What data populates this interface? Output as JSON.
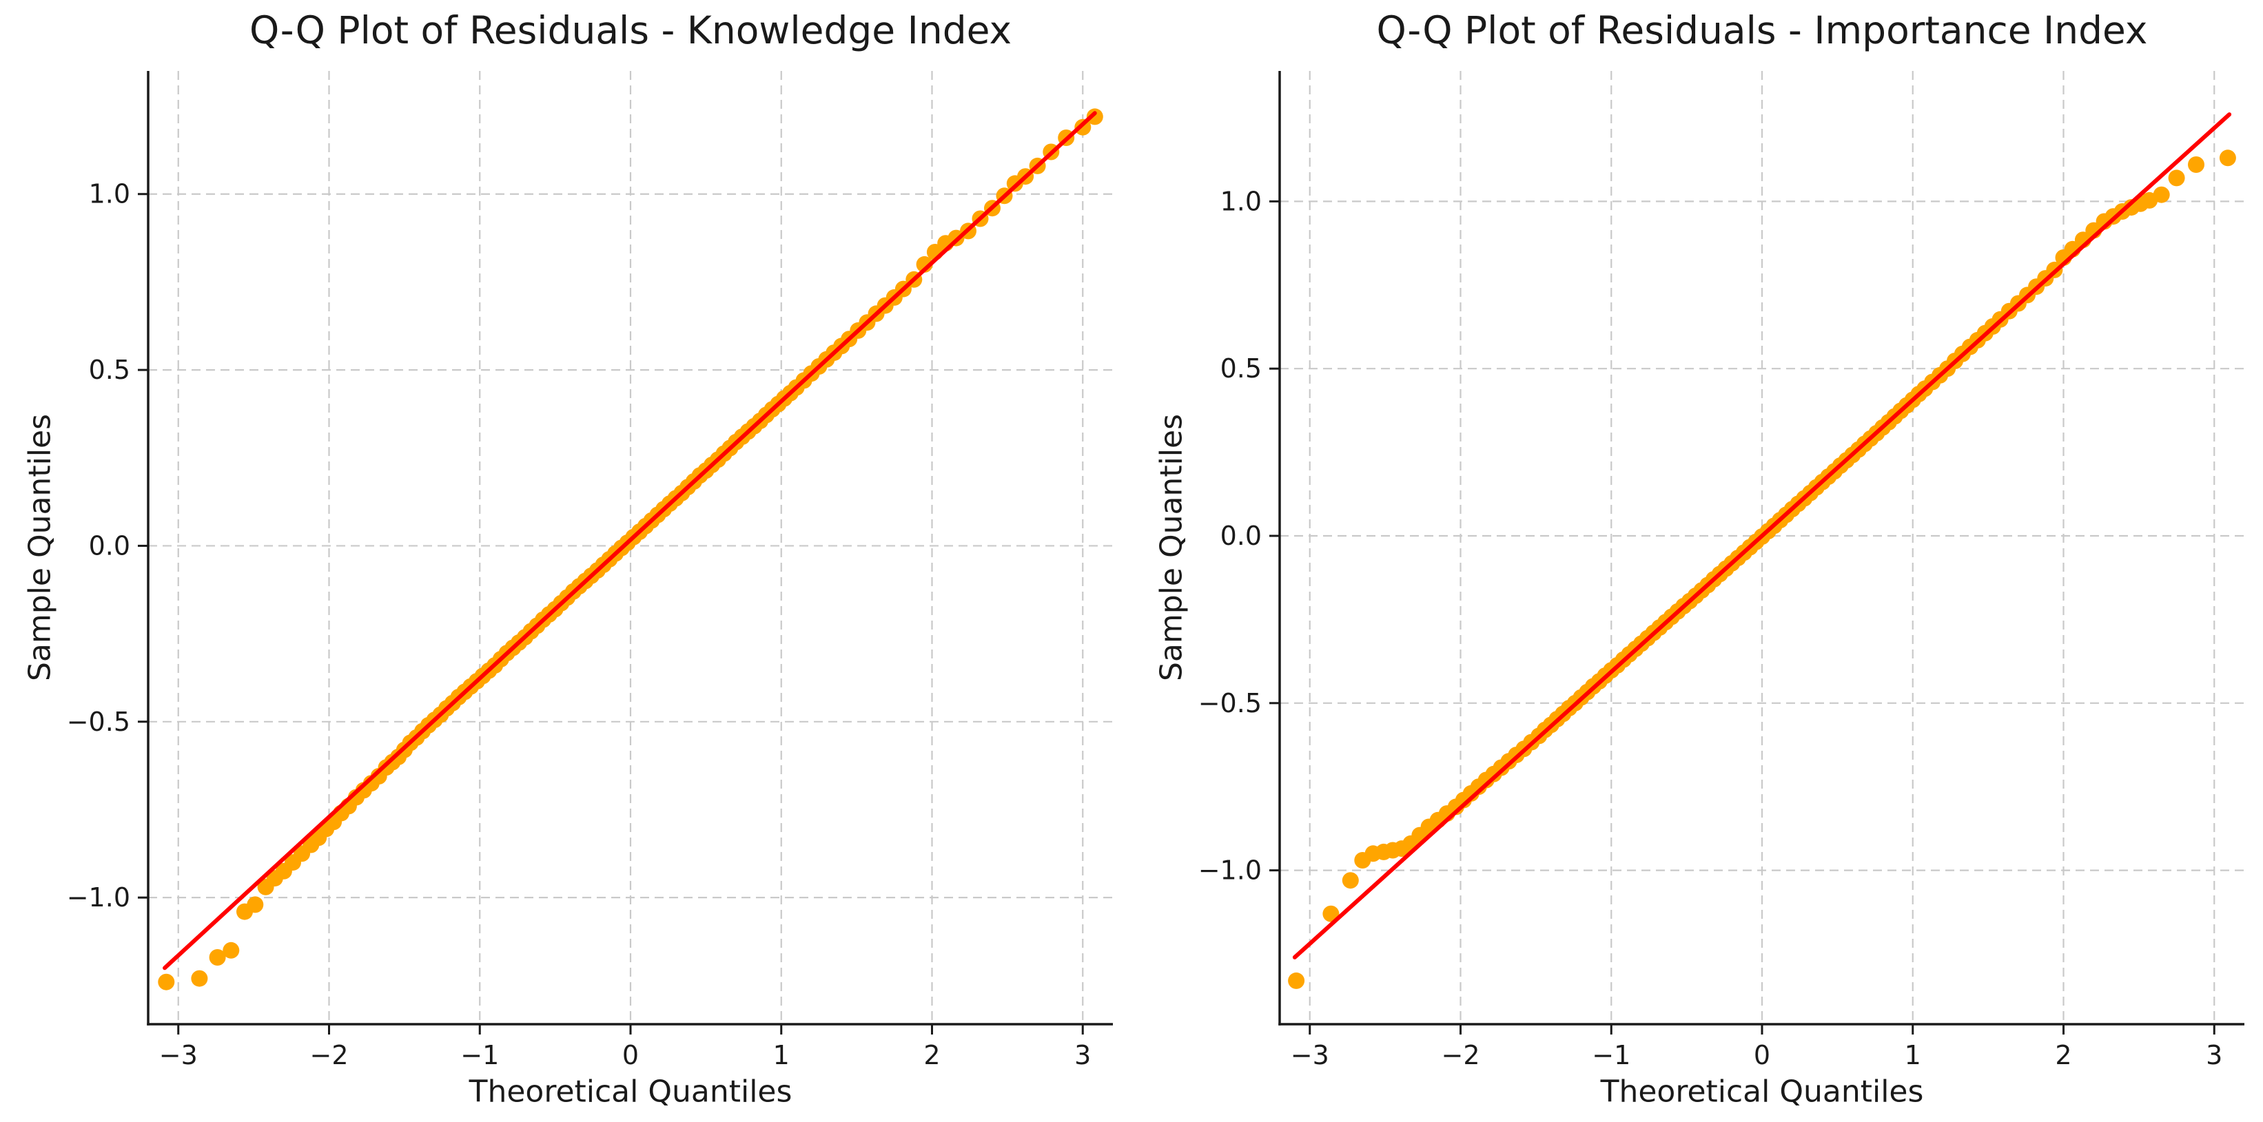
{
  "figure": {
    "background": "#ffffff",
    "text_color": "#1a1a1a",
    "grid_color": "#c9c9c9",
    "spine_color": "#1a1a1a"
  },
  "chart_data": [
    {
      "type": "scatter",
      "title": "Q-Q Plot of Residuals - Knowledge Index",
      "xlabel": "Theoretical Quantiles",
      "ylabel": "Sample Quantiles",
      "xlim": [
        -3.2,
        3.2
      ],
      "ylim": [
        -1.36,
        1.35
      ],
      "xticks": [
        -3,
        -2,
        -1,
        0,
        1,
        2,
        3
      ],
      "xtick_labels": [
        "−3",
        "−2",
        "−1",
        "0",
        "1",
        "2",
        "3"
      ],
      "yticks": [
        -1.0,
        -0.5,
        0.0,
        0.5,
        1.0
      ],
      "ytick_labels": [
        "−1.0",
        "−0.5",
        "0.0",
        "0.5",
        "1.0"
      ],
      "grid": true,
      "legend_position": "none",
      "marker_color": "#FFA500",
      "marker_radius": 12,
      "ref_line_color": "#FF0000",
      "ref_line": [
        [
          -3.09,
          -1.2
        ],
        [
          3.08,
          1.23
        ]
      ],
      "points": [
        [
          -3.08,
          -1.24
        ],
        [
          -2.86,
          -1.23
        ],
        [
          -2.74,
          -1.17
        ],
        [
          -2.65,
          -1.15
        ],
        [
          -2.56,
          -1.04
        ],
        [
          -2.49,
          -1.02
        ],
        [
          -2.42,
          -0.97
        ],
        [
          -2.36,
          -0.945
        ],
        [
          -2.3,
          -0.925
        ],
        [
          -2.24,
          -0.9
        ],
        [
          -2.18,
          -0.875
        ],
        [
          -2.12,
          -0.85
        ],
        [
          -2.07,
          -0.83
        ],
        [
          -2.02,
          -0.805
        ],
        [
          -1.97,
          -0.785
        ],
        [
          -1.92,
          -0.76
        ],
        [
          -1.87,
          -0.74
        ],
        [
          -1.82,
          -0.715
        ],
        [
          -1.77,
          -0.695
        ],
        [
          -1.72,
          -0.675
        ],
        [
          -1.67,
          -0.655
        ],
        [
          -1.62,
          -0.63
        ],
        [
          -1.58,
          -0.615
        ],
        [
          -1.54,
          -0.6
        ],
        [
          -1.5,
          -0.58
        ],
        [
          -1.46,
          -0.56
        ],
        [
          -1.42,
          -0.545
        ],
        [
          -1.38,
          -0.527
        ],
        [
          -1.34,
          -0.51
        ],
        [
          -1.3,
          -0.495
        ],
        [
          -1.26,
          -0.48
        ],
        [
          -1.22,
          -0.462
        ],
        [
          -1.18,
          -0.447
        ],
        [
          -1.14,
          -0.43
        ],
        [
          -1.1,
          -0.415
        ],
        [
          -1.06,
          -0.4
        ],
        [
          -1.02,
          -0.385
        ],
        [
          -0.98,
          -0.37
        ],
        [
          -0.94,
          -0.355
        ],
        [
          -0.9,
          -0.34
        ],
        [
          -0.86,
          -0.322
        ],
        [
          -0.82,
          -0.305
        ],
        [
          -0.78,
          -0.29
        ],
        [
          -0.74,
          -0.275
        ],
        [
          -0.7,
          -0.26
        ],
        [
          -0.66,
          -0.243
        ],
        [
          -0.62,
          -0.227
        ],
        [
          -0.58,
          -0.21
        ],
        [
          -0.54,
          -0.195
        ],
        [
          -0.5,
          -0.18
        ],
        [
          -0.46,
          -0.163
        ],
        [
          -0.42,
          -0.147
        ],
        [
          -0.38,
          -0.13
        ],
        [
          -0.34,
          -0.115
        ],
        [
          -0.3,
          -0.1
        ],
        [
          -0.26,
          -0.085
        ],
        [
          -0.22,
          -0.07
        ],
        [
          -0.18,
          -0.054
        ],
        [
          -0.14,
          -0.038
        ],
        [
          -0.1,
          -0.022
        ],
        [
          -0.06,
          -0.006
        ],
        [
          -0.02,
          0.009
        ],
        [
          0.02,
          0.025
        ],
        [
          0.06,
          0.04
        ],
        [
          0.1,
          0.056
        ],
        [
          0.14,
          0.072
        ],
        [
          0.18,
          0.088
        ],
        [
          0.22,
          0.104
        ],
        [
          0.26,
          0.12
        ],
        [
          0.3,
          0.135
        ],
        [
          0.34,
          0.15
        ],
        [
          0.38,
          0.167
        ],
        [
          0.42,
          0.183
        ],
        [
          0.46,
          0.2
        ],
        [
          0.5,
          0.214
        ],
        [
          0.54,
          0.23
        ],
        [
          0.58,
          0.245
        ],
        [
          0.62,
          0.262
        ],
        [
          0.66,
          0.278
        ],
        [
          0.7,
          0.295
        ],
        [
          0.74,
          0.31
        ],
        [
          0.78,
          0.325
        ],
        [
          0.82,
          0.34
        ],
        [
          0.86,
          0.355
        ],
        [
          0.9,
          0.372
        ],
        [
          0.94,
          0.388
        ],
        [
          0.98,
          0.403
        ],
        [
          1.02,
          0.419
        ],
        [
          1.06,
          0.434
        ],
        [
          1.1,
          0.45
        ],
        [
          1.15,
          0.47
        ],
        [
          1.2,
          0.49
        ],
        [
          1.25,
          0.51
        ],
        [
          1.3,
          0.53
        ],
        [
          1.35,
          0.549
        ],
        [
          1.4,
          0.568
        ],
        [
          1.45,
          0.588
        ],
        [
          1.51,
          0.612
        ],
        [
          1.57,
          0.635
        ],
        [
          1.63,
          0.66
        ],
        [
          1.69,
          0.683
        ],
        [
          1.75,
          0.706
        ],
        [
          1.81,
          0.73
        ],
        [
          1.88,
          0.757
        ],
        [
          1.95,
          0.8
        ],
        [
          2.02,
          0.835
        ],
        [
          2.09,
          0.86
        ],
        [
          2.16,
          0.875
        ],
        [
          2.24,
          0.895
        ],
        [
          2.32,
          0.93
        ],
        [
          2.4,
          0.96
        ],
        [
          2.48,
          0.995
        ],
        [
          2.55,
          1.03
        ],
        [
          2.62,
          1.05
        ],
        [
          2.7,
          1.08
        ],
        [
          2.79,
          1.12
        ],
        [
          2.89,
          1.16
        ],
        [
          3.0,
          1.19
        ],
        [
          3.08,
          1.22
        ]
      ]
    },
    {
      "type": "scatter",
      "title": "Q-Q Plot of Residuals - Importance Index",
      "xlabel": "Theoretical Quantiles",
      "ylabel": "Sample Quantiles",
      "xlim": [
        -3.2,
        3.2
      ],
      "ylim": [
        -1.46,
        1.39
      ],
      "xticks": [
        -3,
        -2,
        -1,
        0,
        1,
        2,
        3
      ],
      "xtick_labels": [
        "−3",
        "−2",
        "−1",
        "0",
        "1",
        "2",
        "3"
      ],
      "yticks": [
        -1.0,
        -0.5,
        0.0,
        0.5,
        1.0
      ],
      "ytick_labels": [
        "−1.0",
        "−0.5",
        "0.0",
        "0.5",
        "1.0"
      ],
      "grid": true,
      "legend_position": "none",
      "marker_color": "#FFA500",
      "marker_radius": 12,
      "ref_line_color": "#FF0000",
      "ref_line": [
        [
          -3.1,
          -1.26
        ],
        [
          3.1,
          1.26
        ]
      ],
      "points": [
        [
          -3.09,
          -1.33
        ],
        [
          -2.86,
          -1.13
        ],
        [
          -2.73,
          -1.03
        ],
        [
          -2.65,
          -0.97
        ],
        [
          -2.58,
          -0.95
        ],
        [
          -2.51,
          -0.945
        ],
        [
          -2.45,
          -0.94
        ],
        [
          -2.39,
          -0.935
        ],
        [
          -2.33,
          -0.92
        ],
        [
          -2.27,
          -0.895
        ],
        [
          -2.21,
          -0.87
        ],
        [
          -2.15,
          -0.85
        ],
        [
          -2.09,
          -0.83
        ],
        [
          -2.03,
          -0.81
        ],
        [
          -1.98,
          -0.79
        ],
        [
          -1.93,
          -0.77
        ],
        [
          -1.88,
          -0.75
        ],
        [
          -1.83,
          -0.73
        ],
        [
          -1.78,
          -0.712
        ],
        [
          -1.73,
          -0.693
        ],
        [
          -1.68,
          -0.674
        ],
        [
          -1.63,
          -0.655
        ],
        [
          -1.58,
          -0.637
        ],
        [
          -1.53,
          -0.617
        ],
        [
          -1.48,
          -0.598
        ],
        [
          -1.44,
          -0.58
        ],
        [
          -1.4,
          -0.565
        ],
        [
          -1.36,
          -0.548
        ],
        [
          -1.32,
          -0.532
        ],
        [
          -1.28,
          -0.515
        ],
        [
          -1.24,
          -0.5
        ],
        [
          -1.2,
          -0.483
        ],
        [
          -1.16,
          -0.467
        ],
        [
          -1.12,
          -0.45
        ],
        [
          -1.08,
          -0.435
        ],
        [
          -1.04,
          -0.418
        ],
        [
          -1.0,
          -0.402
        ],
        [
          -0.96,
          -0.387
        ],
        [
          -0.92,
          -0.37
        ],
        [
          -0.88,
          -0.354
        ],
        [
          -0.84,
          -0.338
        ],
        [
          -0.8,
          -0.322
        ],
        [
          -0.76,
          -0.306
        ],
        [
          -0.72,
          -0.29
        ],
        [
          -0.68,
          -0.274
        ],
        [
          -0.64,
          -0.258
        ],
        [
          -0.6,
          -0.242
        ],
        [
          -0.56,
          -0.226
        ],
        [
          -0.52,
          -0.21
        ],
        [
          -0.48,
          -0.195
        ],
        [
          -0.44,
          -0.179
        ],
        [
          -0.4,
          -0.163
        ],
        [
          -0.36,
          -0.147
        ],
        [
          -0.32,
          -0.13
        ],
        [
          -0.28,
          -0.114
        ],
        [
          -0.24,
          -0.098
        ],
        [
          -0.2,
          -0.082
        ],
        [
          -0.16,
          -0.066
        ],
        [
          -0.12,
          -0.05
        ],
        [
          -0.08,
          -0.034
        ],
        [
          -0.04,
          -0.018
        ],
        [
          0.0,
          -0.002
        ],
        [
          0.04,
          0.014
        ],
        [
          0.08,
          0.03
        ],
        [
          0.12,
          0.047
        ],
        [
          0.16,
          0.063
        ],
        [
          0.2,
          0.08
        ],
        [
          0.24,
          0.096
        ],
        [
          0.28,
          0.112
        ],
        [
          0.32,
          0.128
        ],
        [
          0.36,
          0.145
        ],
        [
          0.4,
          0.161
        ],
        [
          0.44,
          0.177
        ],
        [
          0.48,
          0.193
        ],
        [
          0.52,
          0.21
        ],
        [
          0.56,
          0.226
        ],
        [
          0.6,
          0.242
        ],
        [
          0.64,
          0.258
        ],
        [
          0.68,
          0.275
        ],
        [
          0.72,
          0.291
        ],
        [
          0.76,
          0.307
        ],
        [
          0.8,
          0.324
        ],
        [
          0.84,
          0.34
        ],
        [
          0.88,
          0.357
        ],
        [
          0.92,
          0.374
        ],
        [
          0.96,
          0.39
        ],
        [
          1.0,
          0.407
        ],
        [
          1.04,
          0.424
        ],
        [
          1.08,
          0.44
        ],
        [
          1.13,
          0.46
        ],
        [
          1.18,
          0.48
        ],
        [
          1.23,
          0.5
        ],
        [
          1.28,
          0.523
        ],
        [
          1.33,
          0.544
        ],
        [
          1.38,
          0.565
        ],
        [
          1.43,
          0.585
        ],
        [
          1.48,
          0.606
        ],
        [
          1.53,
          0.626
        ],
        [
          1.58,
          0.647
        ],
        [
          1.64,
          0.672
        ],
        [
          1.7,
          0.695
        ],
        [
          1.76,
          0.72
        ],
        [
          1.82,
          0.745
        ],
        [
          1.88,
          0.77
        ],
        [
          1.94,
          0.795
        ],
        [
          2.0,
          0.832
        ],
        [
          2.06,
          0.857
        ],
        [
          2.13,
          0.885
        ],
        [
          2.2,
          0.913
        ],
        [
          2.27,
          0.94
        ],
        [
          2.33,
          0.955
        ],
        [
          2.39,
          0.97
        ],
        [
          2.45,
          0.982
        ],
        [
          2.51,
          0.993
        ],
        [
          2.57,
          1.003
        ],
        [
          2.65,
          1.02
        ],
        [
          2.75,
          1.07
        ],
        [
          2.88,
          1.11
        ],
        [
          3.09,
          1.13
        ]
      ]
    }
  ]
}
